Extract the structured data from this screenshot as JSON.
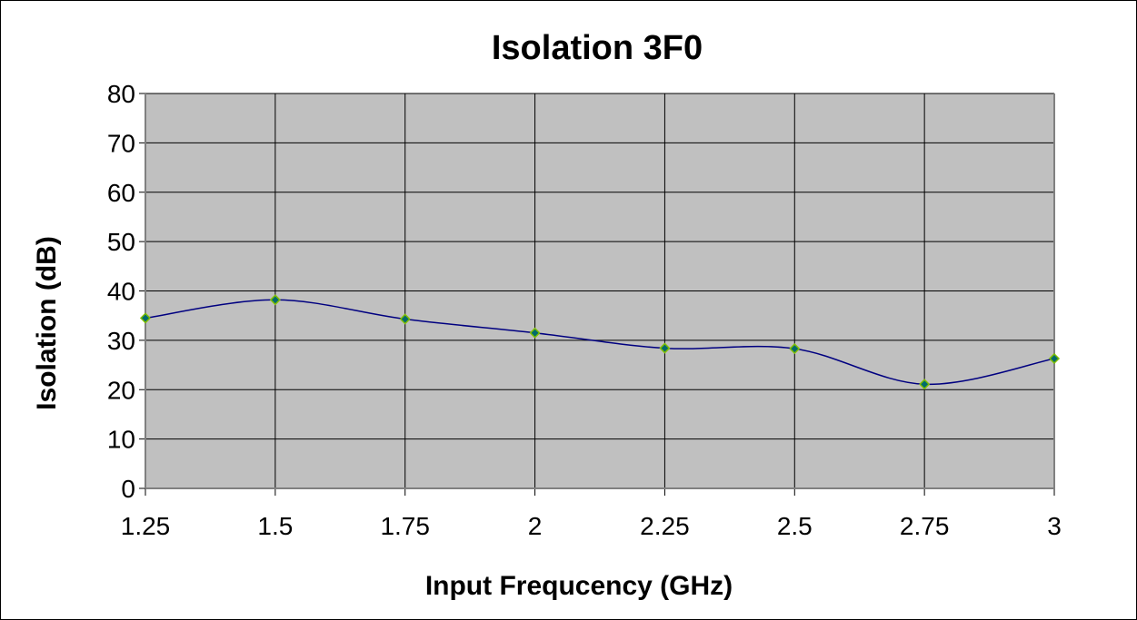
{
  "chart_data": {
    "type": "line",
    "title": "Isolation 3F0",
    "xlabel": "Input Frequcency (GHz)",
    "ylabel": "Isolation (dB)",
    "x_tick_labels": [
      "1.25",
      "1.5",
      "1.75",
      "2",
      "2.25",
      "2.5",
      "2.75",
      "3"
    ],
    "y_tick_labels": [
      "0",
      "10",
      "20",
      "30",
      "40",
      "50",
      "60",
      "70",
      "80"
    ],
    "xlim": [
      1.25,
      3
    ],
    "ylim": [
      0,
      80
    ],
    "grid": true,
    "smooth": true,
    "series": [
      {
        "x": [
          1.25,
          1.5,
          1.75,
          2,
          2.25,
          2.5,
          2.75,
          3
        ],
        "values": [
          34.5,
          38.2,
          34.3,
          31.5,
          28.4,
          28.3,
          21.1,
          26.3
        ]
      }
    ],
    "colors": {
      "plot_background": "#c0c0c0",
      "line": "#000080",
      "marker_fill": "#006b6b",
      "marker_stroke": "#7fbf00",
      "grid": "#000000"
    }
  }
}
